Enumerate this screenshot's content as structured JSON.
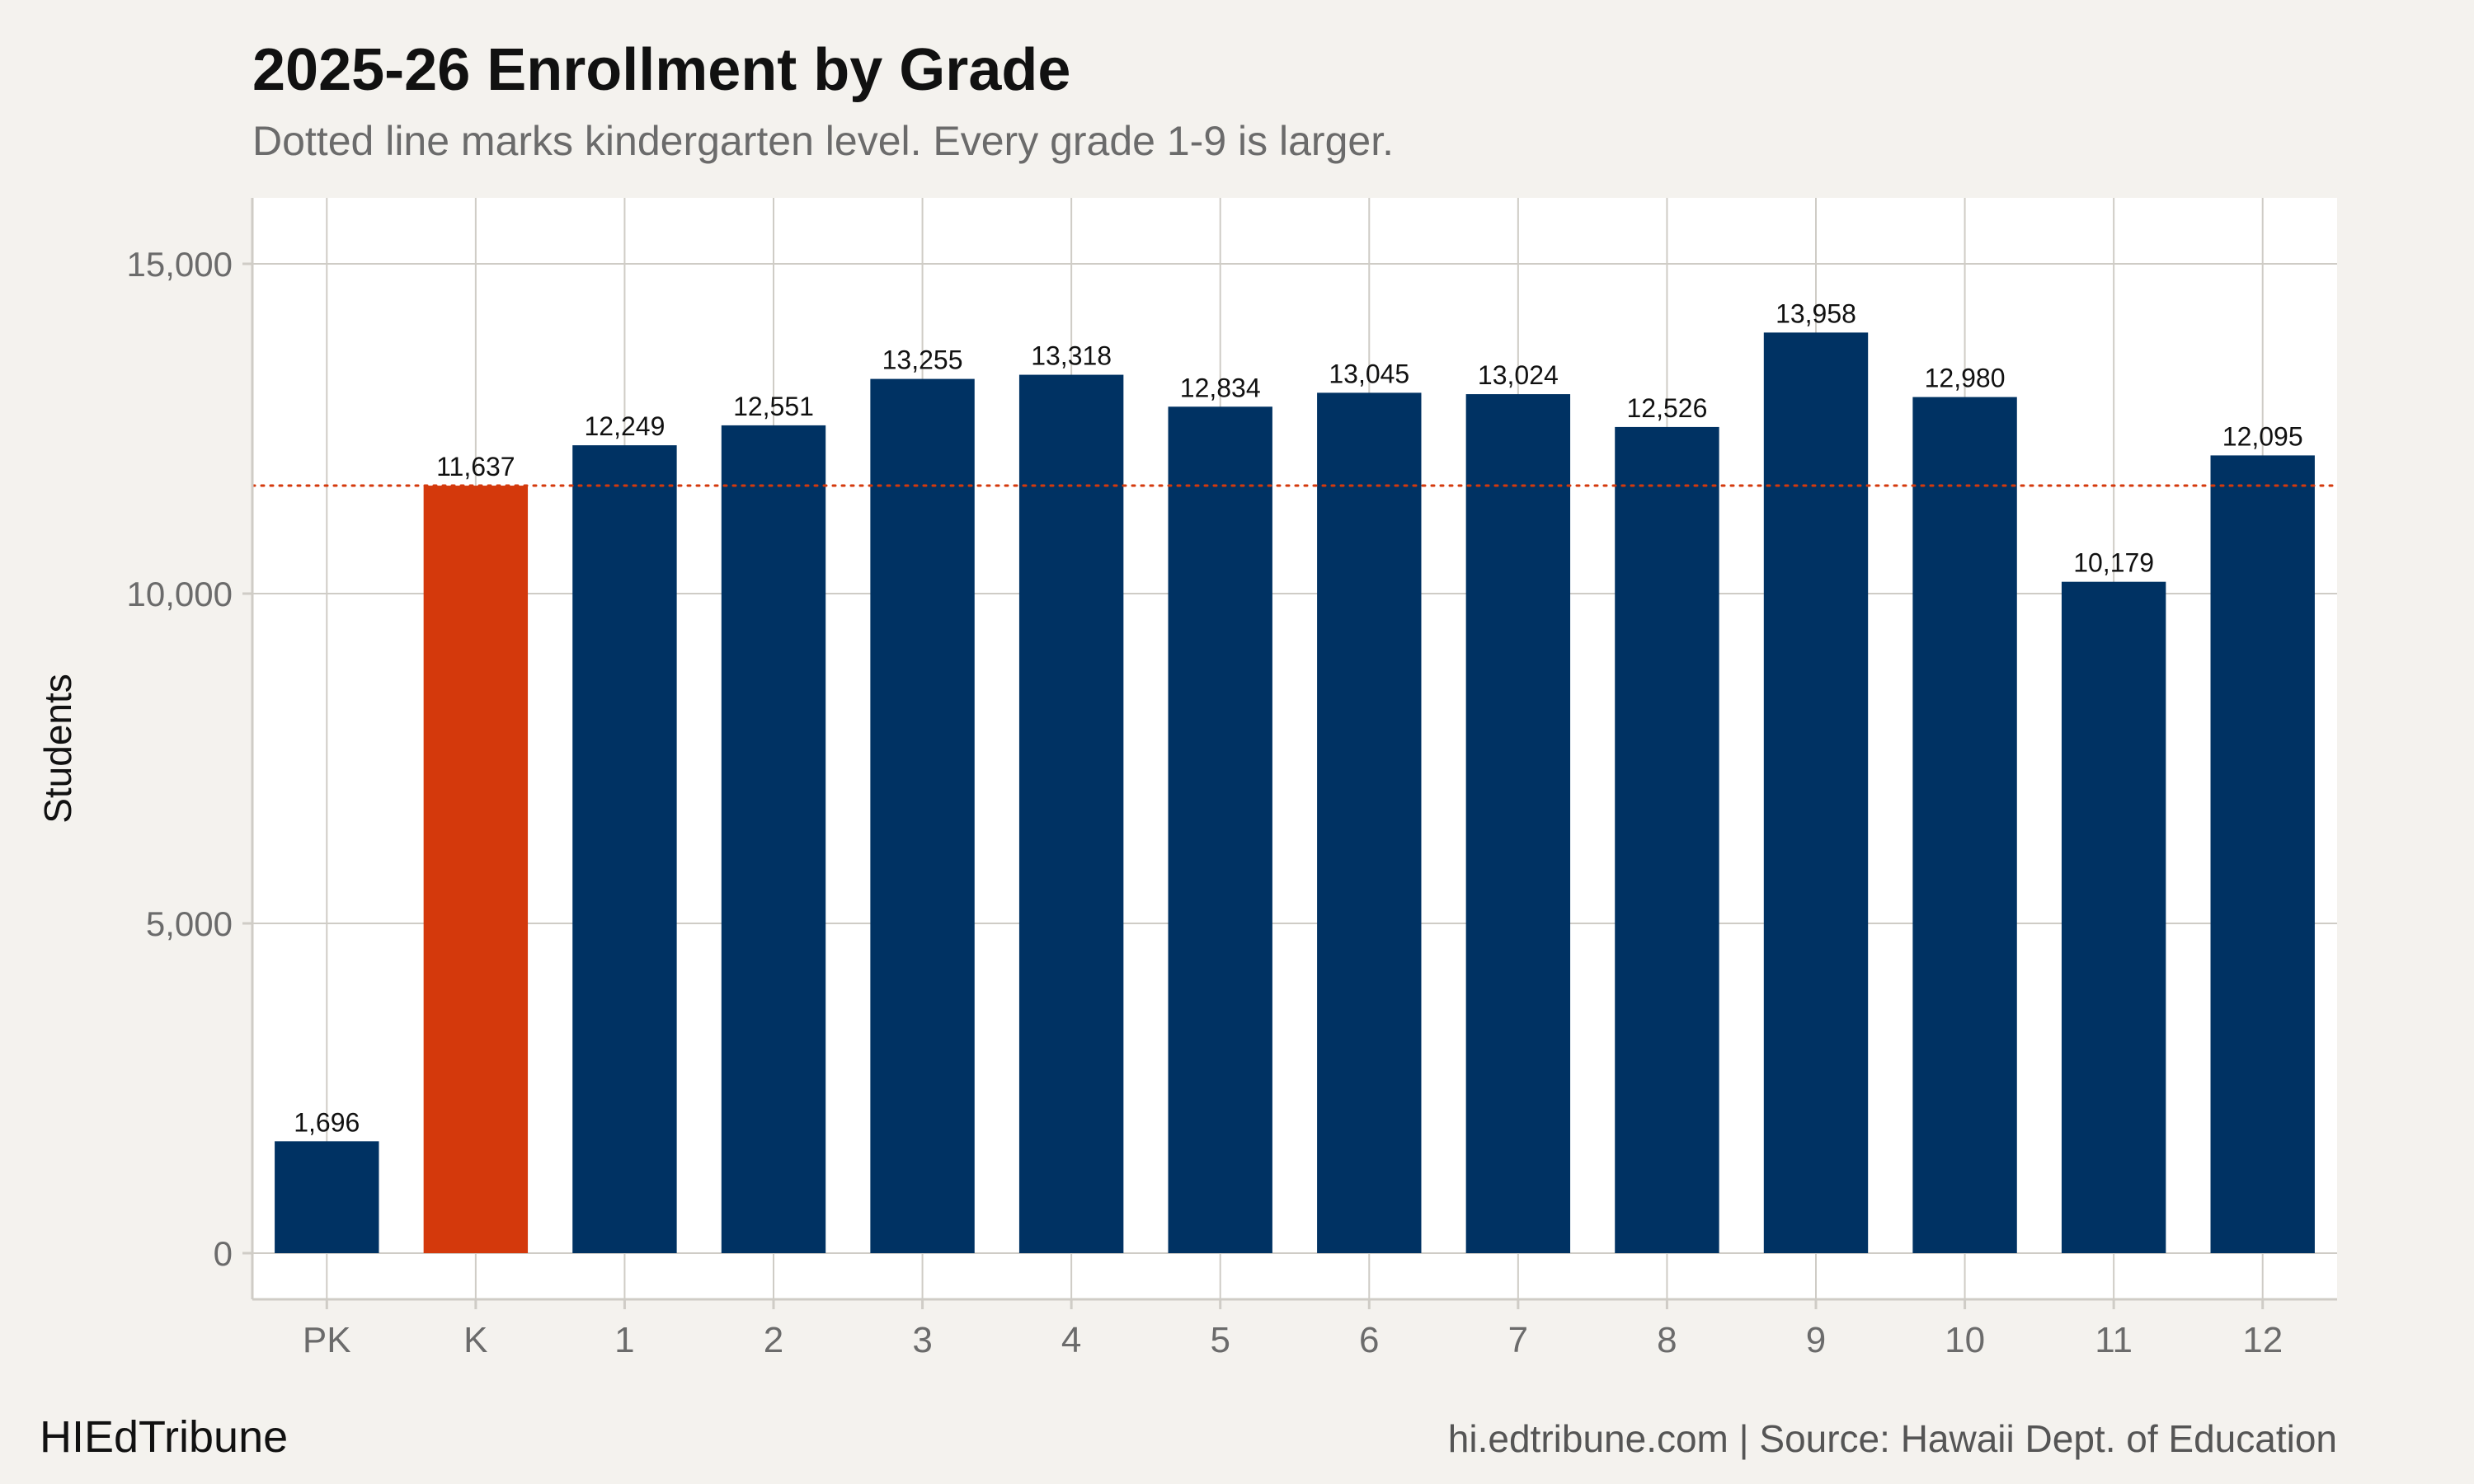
{
  "title": "2025-26 Enrollment by Grade",
  "subtitle": "Dotted line marks kindergarten level. Every grade 1-9 is larger.",
  "footer": {
    "brand": "HIEdTribune",
    "source": "hi.edtribune.com | Source: Hawaii Dept. of Education"
  },
  "colors": {
    "bar_default": "#003263",
    "bar_highlight": "#d4390c",
    "reference_line": "#d4390c",
    "grid": "#cfccc6",
    "panel": "#ffffff",
    "background": "#f4f2ee"
  },
  "chart_data": {
    "type": "bar",
    "title": "2025-26 Enrollment by Grade",
    "subtitle": "Dotted line marks kindergarten level. Every grade 1-9 is larger.",
    "xlabel": "",
    "ylabel": "Students",
    "categories": [
      "PK",
      "K",
      "1",
      "2",
      "3",
      "4",
      "5",
      "6",
      "7",
      "8",
      "9",
      "10",
      "11",
      "12"
    ],
    "values": [
      1696,
      11637,
      12249,
      12551,
      13255,
      13318,
      12834,
      13045,
      13024,
      12526,
      13958,
      12980,
      10179,
      12095
    ],
    "value_labels": [
      "1,696",
      "11,637",
      "12,249",
      "12,551",
      "13,255",
      "13,318",
      "12,834",
      "13,045",
      "13,024",
      "12,526",
      "13,958",
      "12,980",
      "10,179",
      "12,095"
    ],
    "highlight_category": "K",
    "reference_line": {
      "value": 11637,
      "style": "dotted"
    },
    "ylim": [
      -700,
      16000
    ],
    "y_ticks": [
      0,
      5000,
      10000,
      15000
    ],
    "y_tick_labels": [
      "0",
      "5,000",
      "10,000",
      "15,000"
    ],
    "grid": true,
    "legend": "none"
  }
}
